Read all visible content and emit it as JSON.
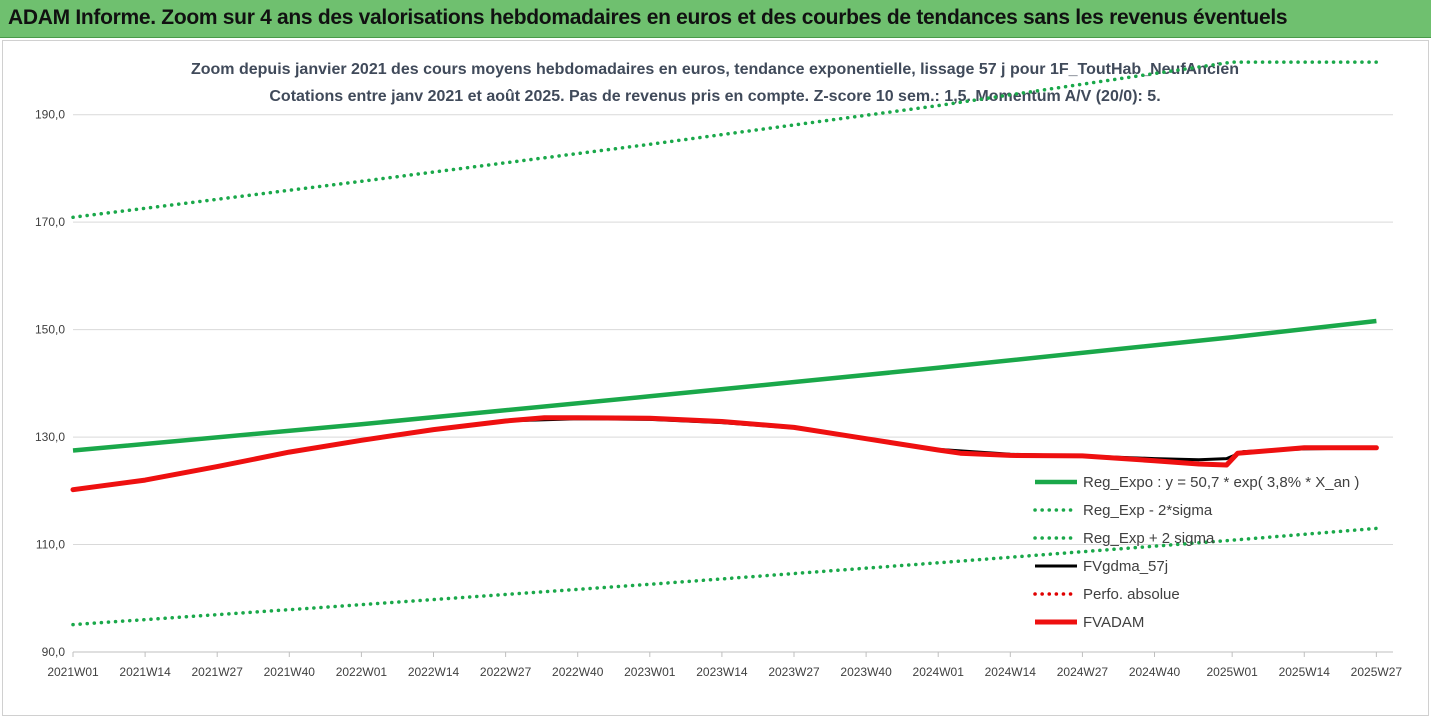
{
  "header": {
    "title": "ADAM Informe. Zoom sur 4 ans des valorisations hebdomadaires en euros et des courbes de tendances sans les revenus éventuels"
  },
  "chart_data": {
    "type": "line",
    "title_line1": "Zoom depuis janvier 2021 des cours moyens hebdomadaires en euros, tendance exponentielle, lissage 57 j pour 1F_ToutHab_NeufAncien",
    "title_line2": "Cotations entre janv 2021 et août 2025.  Pas de revenus pris en compte. Z-score 10 sem.: 1,5. Momentum A/V (20/0): 5.",
    "xlabel": "",
    "ylabel": "",
    "ylim": [
      90,
      200
    ],
    "y_ticks": [
      "90,0",
      "110,0",
      "130,0",
      "150,0",
      "170,0",
      "190,0"
    ],
    "y_tick_values": [
      90,
      110,
      130,
      150,
      170,
      190
    ],
    "x_week_range": [
      0,
      238
    ],
    "x_ticks": [
      {
        "label": "2021W01",
        "week": 0
      },
      {
        "label": "2021W14",
        "week": 13
      },
      {
        "label": "2021W27",
        "week": 26
      },
      {
        "label": "2021W40",
        "week": 39
      },
      {
        "label": "2022W01",
        "week": 52
      },
      {
        "label": "2022W14",
        "week": 65
      },
      {
        "label": "2022W27",
        "week": 78
      },
      {
        "label": "2022W40",
        "week": 91
      },
      {
        "label": "2023W01",
        "week": 104
      },
      {
        "label": "2023W14",
        "week": 117
      },
      {
        "label": "2023W27",
        "week": 130
      },
      {
        "label": "2023W40",
        "week": 143
      },
      {
        "label": "2024W01",
        "week": 156
      },
      {
        "label": "2024W14",
        "week": 169
      },
      {
        "label": "2024W27",
        "week": 182
      },
      {
        "label": "2024W40",
        "week": 195
      },
      {
        "label": "2025W01",
        "week": 209
      },
      {
        "label": "2025W14",
        "week": 222
      },
      {
        "label": "2025W27",
        "week": 235
      }
    ],
    "grid": true,
    "legend_position": "bottom-right",
    "series": [
      {
        "name": "Reg_Expo : y = 50,7 * exp( 3,8% *  X_an )",
        "color": "#1aa84a",
        "style": "solid",
        "x": [
          0,
          52,
          104,
          156,
          209,
          235
        ],
        "y": [
          127.5,
          132.4,
          137.6,
          142.9,
          148.6,
          151.6
        ]
      },
      {
        "name": "Reg_Exp - 2*sigma",
        "color": "#1aa84a",
        "style": "dotted",
        "x": [
          0,
          52,
          104,
          156,
          209,
          235
        ],
        "y": [
          95.1,
          98.8,
          102.6,
          106.6,
          110.8,
          113.0
        ]
      },
      {
        "name": "Reg_Exp + 2 sigma",
        "color": "#1aa84a",
        "style": "dotted",
        "x": [
          0,
          52,
          104,
          156,
          171,
          209,
          235
        ],
        "y": [
          170.9,
          177.6,
          184.5,
          191.7,
          194.0,
          199.8,
          199.8
        ]
      },
      {
        "name": "FVgdma_57j",
        "color": "#000000",
        "style": "solid",
        "x": [
          0,
          13,
          26,
          39,
          52,
          65,
          78,
          91,
          104,
          117,
          130,
          143,
          156,
          169,
          182,
          195,
          203,
          208,
          211,
          222,
          235
        ],
        "y": [
          120.2,
          122.0,
          124.5,
          127.2,
          129.3,
          131.3,
          133.0,
          133.4,
          133.3,
          132.7,
          131.7,
          129.6,
          127.7,
          126.8,
          126.5,
          126.0,
          125.8,
          126.0,
          127.3,
          127.8,
          128.0
        ]
      },
      {
        "name": "Perfo. absolue",
        "color": "#e00000",
        "style": "dotted",
        "x": [],
        "y": []
      },
      {
        "name": "FVADAM",
        "color": "#ee1010",
        "style": "solid",
        "x": [
          0,
          13,
          26,
          39,
          52,
          65,
          78,
          85,
          91,
          104,
          117,
          130,
          143,
          156,
          160,
          169,
          182,
          195,
          203,
          208,
          210,
          222,
          235
        ],
        "y": [
          120.2,
          122.0,
          124.5,
          127.2,
          129.4,
          131.4,
          133.0,
          133.6,
          133.6,
          133.5,
          132.9,
          131.8,
          129.7,
          127.6,
          127.0,
          126.6,
          126.5,
          125.6,
          125.0,
          124.8,
          127.0,
          128.0,
          128.0
        ]
      }
    ]
  }
}
